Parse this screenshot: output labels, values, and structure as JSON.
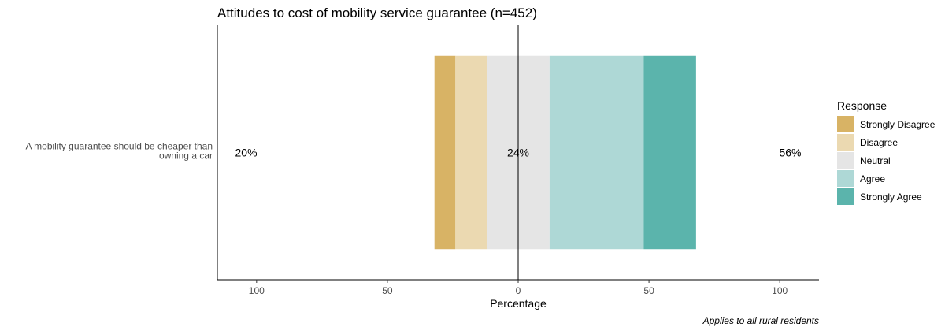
{
  "chart_data": {
    "type": "bar",
    "subtype": "diverging-stacked",
    "title": "Attitudes to cost of mobility service guarantee (n=452)",
    "xlabel": "Percentage",
    "xlim": [
      -115,
      115
    ],
    "xticks": [
      -100,
      -50,
      0,
      50,
      100
    ],
    "xtick_labels": [
      "100",
      "50",
      "0",
      "50",
      "100"
    ],
    "grid": false,
    "legend_title": "Response",
    "legend_position": "right",
    "caption": "Applies to all rural residents",
    "categories": [
      [
        "A mobility guarantee should be cheaper than",
        "owning a car"
      ]
    ],
    "series": [
      {
        "name": "Strongly Disagree",
        "color": "#D8B365",
        "values": [
          8
        ]
      },
      {
        "name": "Disagree",
        "color": "#EBD9B1",
        "values": [
          12
        ]
      },
      {
        "name": "Neutral",
        "color": "#E5E5E5",
        "values": [
          24
        ]
      },
      {
        "name": "Agree",
        "color": "#AED8D6",
        "values": [
          36
        ]
      },
      {
        "name": "Strongly Agree",
        "color": "#5BB4AC",
        "values": [
          20
        ]
      }
    ],
    "summary_labels": {
      "disagree": "20%",
      "neutral": "24%",
      "agree": "56%"
    }
  }
}
